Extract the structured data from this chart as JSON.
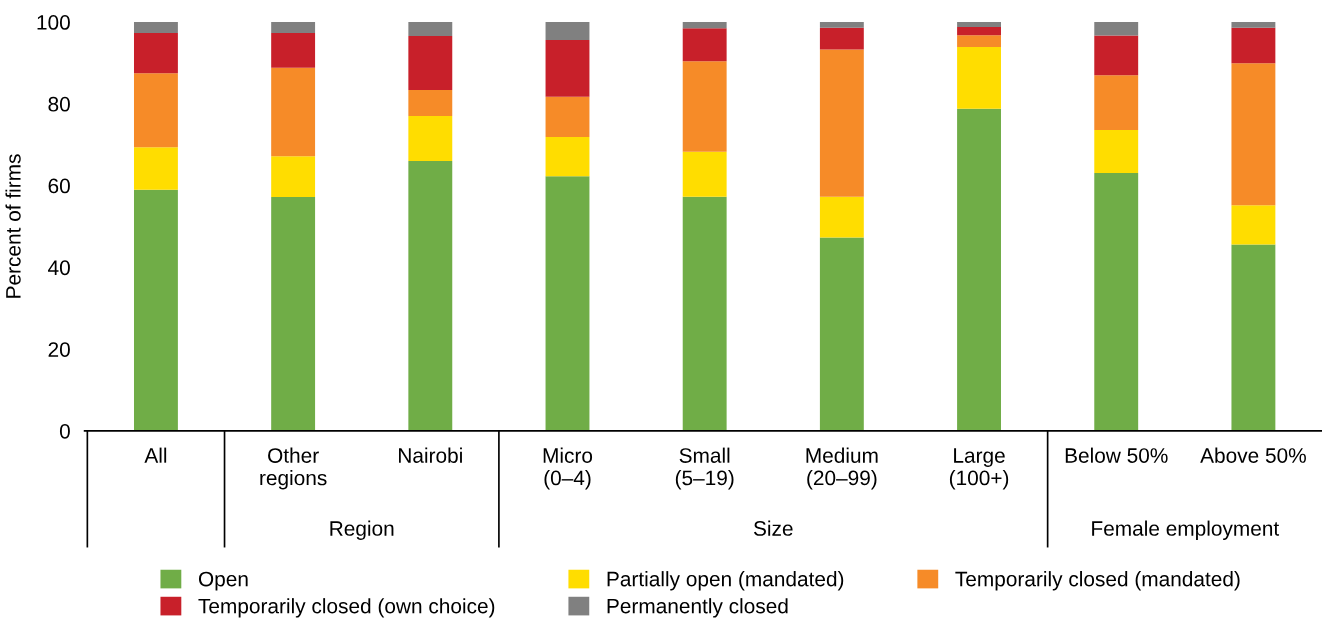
{
  "chart_data": {
    "type": "bar",
    "stacked": true,
    "ylabel": "Percent of firms",
    "categories": [
      "All",
      "Other\nregions",
      "Nairobi",
      "Micro\n(0–4)",
      "Small\n(5–19)",
      "Medium\n(20–99)",
      "Large\n(100+)",
      "Below 50%",
      "Above 50%"
    ],
    "series": [
      {
        "name": "Open",
        "color": "#70ad47",
        "values": [
          59,
          57.2,
          66,
          62.3,
          57.3,
          47.3,
          78.8,
          63.1,
          45.6
        ]
      },
      {
        "name": "Partially open (mandated)",
        "color": "#ffdd00",
        "values": [
          10.4,
          10,
          11,
          9.6,
          11,
          10,
          15.1,
          10.5,
          9.6
        ]
      },
      {
        "name": "Temporarily closed (mandated)",
        "color": "#f68b28",
        "values": [
          18.1,
          21.6,
          6.4,
          9.8,
          22.1,
          36,
          2.9,
          13.4,
          34.7
        ]
      },
      {
        "name": "Temporarily closed (own choice)",
        "color": "#c8202a",
        "values": [
          9.8,
          8.5,
          13.2,
          13.9,
          8.1,
          5.3,
          2,
          9.7,
          8.7
        ]
      },
      {
        "name": "Permanently closed",
        "color": "#808080",
        "values": [
          2.7,
          2.7,
          3.4,
          4.4,
          1.5,
          1.4,
          1.2,
          3.3,
          1.4
        ]
      }
    ],
    "ylim": [
      0,
      100
    ],
    "yticks": [
      0,
      20,
      40,
      60,
      80,
      100
    ],
    "grid": false,
    "legend": "bottom",
    "annotations": [
      "Region",
      "Size",
      "Female employment"
    ]
  }
}
